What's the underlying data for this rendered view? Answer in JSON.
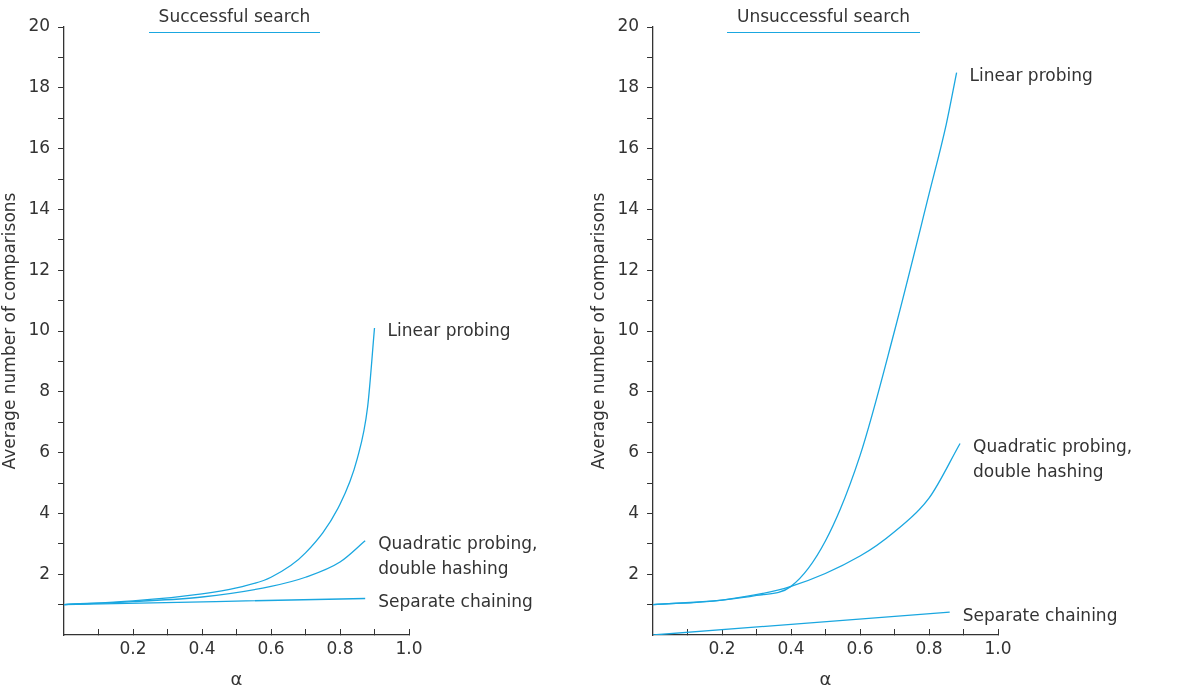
{
  "chart_data": [
    {
      "type": "line",
      "title": "Successful search",
      "xlabel": "α",
      "ylabel": "Average number of comparisons",
      "xlim": [
        0,
        1
      ],
      "ylim": [
        0,
        20
      ],
      "xticks": [
        {
          "value": 0.1,
          "label": null
        },
        0.2,
        {
          "value": 0.3,
          "label": null
        },
        0.4,
        {
          "value": 0.5,
          "label": null
        },
        0.6,
        {
          "value": 0.7,
          "label": null
        },
        0.8,
        {
          "value": 0.9,
          "label": null
        },
        {
          "value": 1,
          "label": "1.0"
        }
      ],
      "yticks": [
        {
          "value": 1,
          "label": null
        },
        2,
        {
          "value": 3,
          "label": null
        },
        4,
        {
          "value": 5,
          "label": null
        },
        6,
        {
          "value": 7,
          "label": null
        },
        8,
        {
          "value": 9,
          "label": null
        },
        10,
        {
          "value": 11,
          "label": null
        },
        12,
        {
          "value": 13,
          "label": null
        },
        14,
        {
          "value": 15,
          "label": null
        },
        16,
        {
          "value": 17,
          "label": null
        },
        18,
        {
          "value": 19,
          "label": null
        },
        20
      ],
      "series": [
        {
          "name": "Linear probing",
          "color": "#1aa7e0",
          "x": [
            0,
            0.2,
            0.4,
            0.5,
            0.6,
            0.7,
            0.8,
            0.85,
            0.88,
            0.9
          ],
          "values": [
            1,
            1.12,
            1.35,
            1.55,
            1.9,
            2.7,
            4.3,
            5.8,
            7.5,
            10.1
          ]
        },
        {
          "name": "Quadratic probing, double hashing",
          "color": "#1aa7e0",
          "x": [
            0,
            0.2,
            0.4,
            0.6,
            0.7,
            0.8,
            0.873
          ],
          "values": [
            1,
            1.1,
            1.25,
            1.6,
            1.9,
            2.4,
            3.1
          ]
        },
        {
          "name": "Separate chaining",
          "color": "#1aa7e0",
          "x": [
            0,
            0.873
          ],
          "values": [
            1,
            1.2
          ]
        }
      ]
    },
    {
      "type": "line",
      "title": "Unsuccessful search",
      "xlabel": "α",
      "ylabel": "Average number of comparisons",
      "xlim": [
        0,
        1
      ],
      "ylim": [
        0,
        20
      ],
      "xticks": [
        {
          "value": 0.1,
          "label": null
        },
        0.2,
        {
          "value": 0.3,
          "label": null
        },
        0.4,
        {
          "value": 0.5,
          "label": null
        },
        0.6,
        {
          "value": 0.7,
          "label": null
        },
        0.8,
        {
          "value": 0.9,
          "label": null
        },
        {
          "value": 1,
          "label": "1.0"
        }
      ],
      "yticks": [
        {
          "value": 1,
          "label": null
        },
        2,
        {
          "value": 3,
          "label": null
        },
        4,
        {
          "value": 5,
          "label": null
        },
        6,
        {
          "value": 7,
          "label": null
        },
        8,
        {
          "value": 9,
          "label": null
        },
        10,
        {
          "value": 11,
          "label": null
        },
        12,
        {
          "value": 13,
          "label": null
        },
        14,
        {
          "value": 15,
          "label": null
        },
        16,
        {
          "value": 17,
          "label": null
        },
        18,
        {
          "value": 19,
          "label": null
        },
        20
      ],
      "series": [
        {
          "name": "Linear probing",
          "color": "#1aa7e0",
          "x": [
            0,
            0.2,
            0.3,
            0.4,
            0.5,
            0.6,
            0.7,
            0.8,
            0.85,
            0.88
          ],
          "values": [
            1,
            1.15,
            1.3,
            1.6,
            3.1,
            5.9,
            10,
            14.5,
            16.8,
            18.5
          ]
        },
        {
          "name": "Quadratic probing, double hashing",
          "color": "#1aa7e0",
          "x": [
            0,
            0.2,
            0.4,
            0.6,
            0.7,
            0.8,
            0.89
          ],
          "values": [
            1,
            1.15,
            1.6,
            2.6,
            3.4,
            4.5,
            6.3
          ]
        },
        {
          "name": "Separate chaining",
          "color": "#1aa7e0",
          "x": [
            0,
            0.86
          ],
          "values": [
            0,
            0.75
          ]
        }
      ]
    }
  ]
}
